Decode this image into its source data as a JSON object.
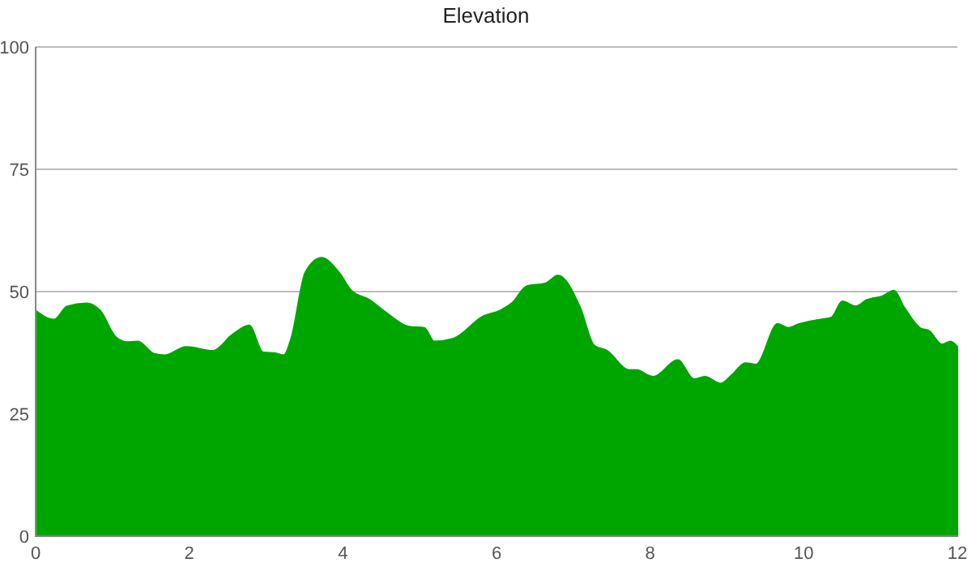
{
  "chart_data": {
    "type": "area",
    "title": "Elevation",
    "x": [
      0,
      0.24,
      0.41,
      0.66,
      0.84,
      1.05,
      1.19,
      1.33,
      1.54,
      1.68,
      1.96,
      2.31,
      2.56,
      2.78,
      2.96,
      3.12,
      3.23,
      3.33,
      3.51,
      3.72,
      3.95,
      4.11,
      4.35,
      4.53,
      4.88,
      5.06,
      5.19,
      5.44,
      5.83,
      6.04,
      6.21,
      6.39,
      6.64,
      6.8,
      7.09,
      7.27,
      7.44,
      7.72,
      7.83,
      7.97,
      8.04,
      8.36,
      8.57,
      8.71,
      8.92,
      9.06,
      9.24,
      9.38,
      9.66,
      9.8,
      9.94,
      10.22,
      10.36,
      10.5,
      10.68,
      10.82,
      11.03,
      11.17,
      11.31,
      11.52,
      11.63,
      11.8,
      11.91,
      12
    ],
    "series": [
      {
        "color": "#00a600",
        "values": [
          46.1,
          44.3,
          47,
          47.6,
          46.1,
          40.6,
          39.7,
          39.8,
          37.3,
          37,
          38.7,
          37.9,
          41.2,
          43.1,
          37.6,
          37.4,
          37,
          40.6,
          53.9,
          56.9,
          53.9,
          50.2,
          48.3,
          46.1,
          42.8,
          42.6,
          39.8,
          40.4,
          45,
          46.1,
          47.8,
          51.1,
          51.7,
          53.3,
          46.7,
          39,
          37.9,
          34,
          34,
          32.9,
          32.6,
          36,
          32.1,
          32.6,
          31.2,
          32.9,
          35.4,
          35.1,
          43.4,
          42.6,
          43.4,
          44.3,
          44.7,
          48,
          47,
          48.3,
          49.1,
          50.2,
          46.7,
          42.5,
          42,
          39.2,
          39.8,
          38.7
        ]
      }
    ],
    "xlim": [
      0,
      12
    ],
    "xticks": [
      0,
      2,
      4,
      6,
      8,
      10,
      12
    ],
    "ylim": [
      0,
      100
    ],
    "yticks": [
      0,
      25,
      50,
      75,
      100
    ],
    "grid": "y"
  }
}
